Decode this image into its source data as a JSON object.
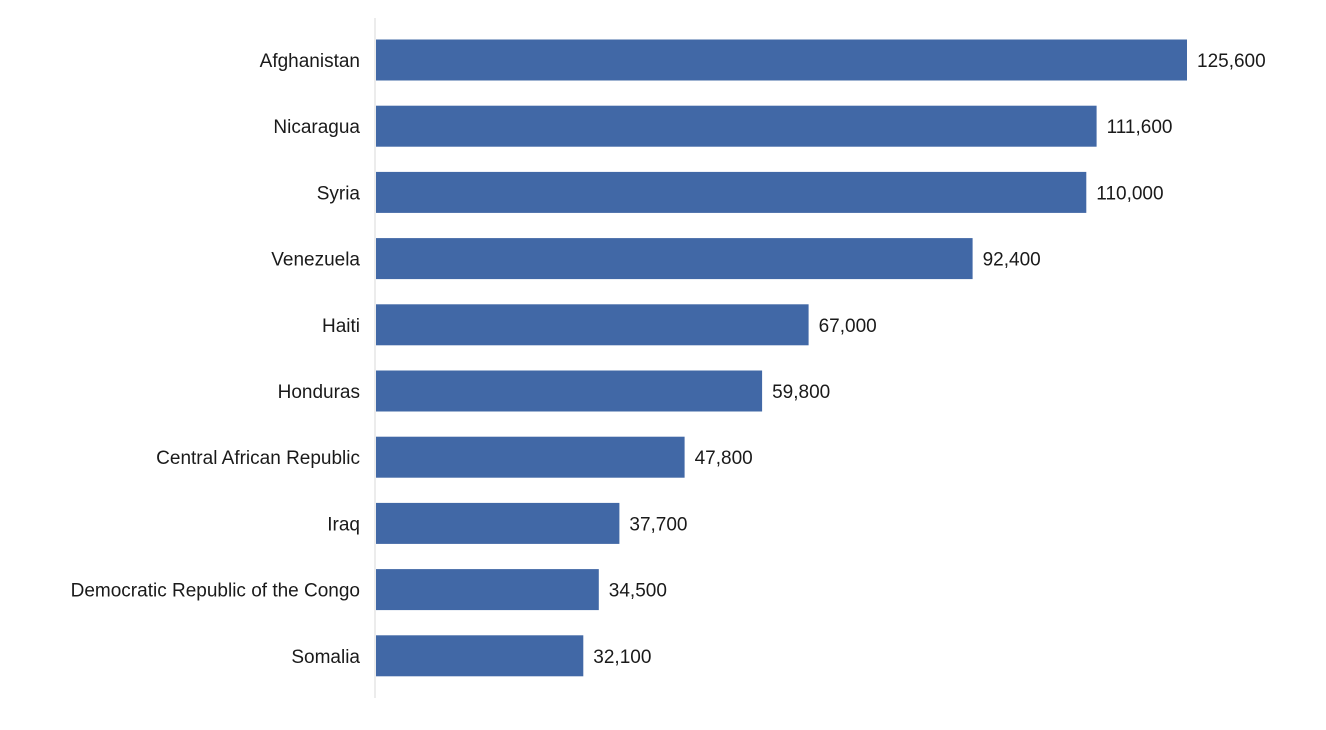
{
  "chart_data": {
    "type": "bar",
    "orientation": "horizontal",
    "categories": [
      "Afghanistan",
      "Nicaragua",
      "Syria",
      "Venezuela",
      "Haiti",
      "Honduras",
      "Central African Republic",
      "Iraq",
      "Democratic Republic of the Congo",
      "Somalia"
    ],
    "values": [
      125600,
      111600,
      110000,
      92400,
      67000,
      59800,
      47800,
      37700,
      34500,
      32100
    ],
    "value_labels": [
      "125,600",
      "111,600",
      "110,000",
      "92,400",
      "67,000",
      "59,800",
      "47,800",
      "37,700",
      "34,500",
      "32,100"
    ],
    "title": "",
    "xlabel": "",
    "ylabel": "",
    "xlim": [
      0,
      125600
    ],
    "grid": false,
    "legend": "none",
    "bar_color": "#4168a6",
    "axis_color": "#d9d9d9"
  }
}
